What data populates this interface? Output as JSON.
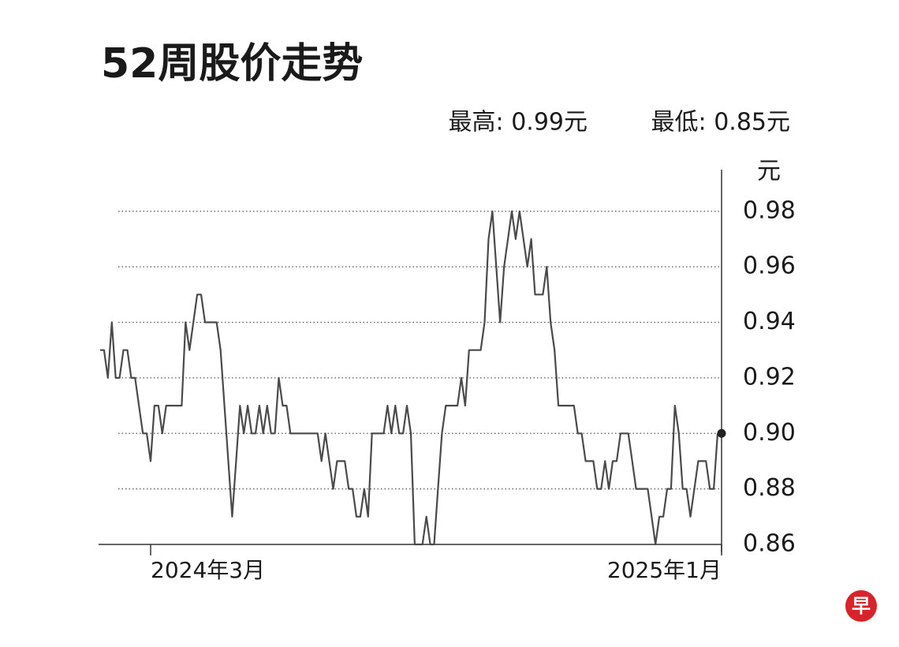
{
  "chart_data": {
    "type": "line",
    "title": "52周股价走势",
    "annotations": [
      "最高: 0.99元",
      "最低: 0.85元"
    ],
    "y_unit": "元",
    "logo": "早",
    "color": "#4a4a4a",
    "grid": true,
    "ylim": [
      0.86,
      0.995
    ],
    "yticks": [
      0.86,
      0.88,
      {
        "value": 0.9,
        "label": "0.90"
      },
      0.92,
      0.94,
      0.96,
      0.98
    ],
    "categories": [
      null,
      null,
      null,
      null,
      null,
      null,
      null,
      null,
      null,
      null,
      null,
      null,
      null,
      "2024年3月",
      null,
      null,
      null,
      null,
      null,
      null,
      null,
      null,
      null,
      null,
      null,
      null,
      null,
      null,
      null,
      null,
      null,
      null,
      null,
      null,
      null,
      null,
      null,
      null,
      null,
      null,
      null,
      null,
      null,
      null,
      null,
      null,
      null,
      null,
      null,
      null,
      null,
      null,
      null,
      null,
      null,
      null,
      null,
      null,
      null,
      null,
      null,
      null,
      null,
      null,
      null,
      null,
      null,
      null,
      null,
      null,
      null,
      null,
      null,
      null,
      null,
      null,
      null,
      null,
      null,
      null,
      null,
      null,
      null,
      null,
      null,
      null,
      null,
      null,
      null,
      null,
      null,
      null,
      null,
      null,
      null,
      null,
      null,
      null,
      null,
      null,
      null,
      null,
      null,
      null,
      null,
      null,
      null,
      null,
      null,
      null,
      null,
      null,
      null,
      null,
      null,
      null,
      null,
      null,
      null,
      null,
      null,
      null,
      null,
      null,
      null,
      null,
      null,
      null,
      null,
      null,
      null,
      null,
      null,
      null,
      null,
      null,
      null,
      null,
      null,
      null,
      null,
      null,
      null,
      null,
      null,
      null,
      null,
      null,
      null,
      null,
      null,
      null,
      null,
      null,
      null,
      null,
      null,
      null,
      null,
      "2025年1月"
    ],
    "values": [
      0.93,
      0.93,
      0.92,
      0.94,
      0.92,
      0.92,
      0.93,
      0.93,
      0.92,
      0.92,
      0.91,
      0.9,
      0.9,
      0.89,
      0.91,
      0.91,
      0.9,
      0.91,
      0.91,
      0.91,
      0.91,
      0.91,
      0.94,
      0.93,
      0.94,
      0.95,
      0.95,
      0.94,
      0.94,
      0.94,
      0.94,
      0.93,
      0.91,
      0.89,
      0.87,
      0.89,
      0.91,
      0.9,
      0.91,
      0.9,
      0.9,
      0.91,
      0.9,
      0.91,
      0.9,
      0.9,
      0.92,
      0.91,
      0.91,
      0.9,
      0.9,
      0.9,
      0.9,
      0.9,
      0.9,
      0.9,
      0.9,
      0.89,
      0.9,
      0.89,
      0.88,
      0.89,
      0.89,
      0.89,
      0.88,
      0.88,
      0.87,
      0.87,
      0.88,
      0.87,
      0.9,
      0.9,
      0.9,
      0.9,
      0.91,
      0.9,
      0.91,
      0.9,
      0.9,
      0.91,
      0.9,
      0.86,
      0.86,
      0.86,
      0.87,
      0.86,
      0.86,
      0.88,
      0.9,
      0.91,
      0.91,
      0.91,
      0.91,
      0.92,
      0.91,
      0.93,
      0.93,
      0.93,
      0.93,
      0.94,
      0.97,
      0.98,
      0.96,
      0.94,
      0.96,
      0.97,
      0.98,
      0.97,
      0.98,
      0.97,
      0.96,
      0.97,
      0.95,
      0.95,
      0.95,
      0.96,
      0.94,
      0.93,
      0.91,
      0.91,
      0.91,
      0.91,
      0.91,
      0.9,
      0.9,
      0.89,
      0.89,
      0.89,
      0.88,
      0.88,
      0.89,
      0.88,
      0.89,
      0.89,
      0.9,
      0.9,
      0.9,
      0.89,
      0.88,
      0.88,
      0.88,
      0.88,
      0.87,
      0.86,
      0.87,
      0.87,
      0.88,
      0.88,
      0.91,
      0.9,
      0.88,
      0.88,
      0.87,
      0.88,
      0.89,
      0.89,
      0.89,
      0.88,
      0.88,
      0.9
    ]
  }
}
